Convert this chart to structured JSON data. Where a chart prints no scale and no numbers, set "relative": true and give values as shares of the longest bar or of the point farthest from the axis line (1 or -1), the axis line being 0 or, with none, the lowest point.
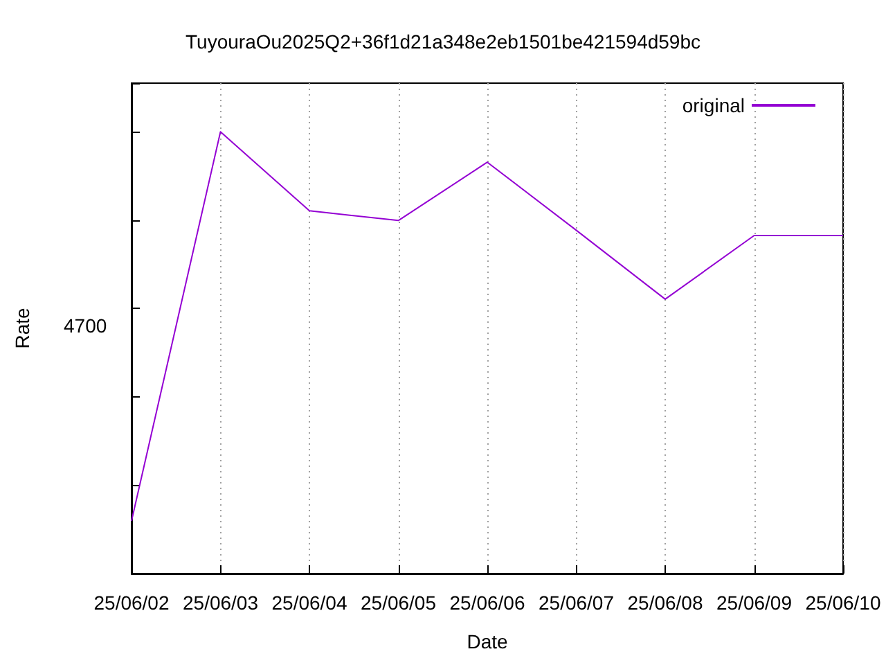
{
  "chart_data": {
    "type": "line",
    "title": "TuyouraOu2025Q2+36f1d21a348e2eb1501be421594d59bc",
    "xlabel": "Date",
    "ylabel": "Rate",
    "categories": [
      "25/06/02",
      "25/06/03",
      "25/06/04",
      "25/06/05",
      "25/06/06",
      "25/06/07",
      "25/06/08",
      "25/06/09",
      "25/06/10"
    ],
    "relative": true,
    "series": [
      {
        "name": "original",
        "color": "#9400d3",
        "values": [
          0.119,
          1,
          0.821,
          0.799,
          0.931,
          0.777,
          0.621,
          0.765,
          0.765
        ]
      }
    ],
    "annotations": [
      "4700"
    ],
    "grid": "x",
    "legend": "top right",
    "marker": "none",
    "line_style": "solid"
  }
}
